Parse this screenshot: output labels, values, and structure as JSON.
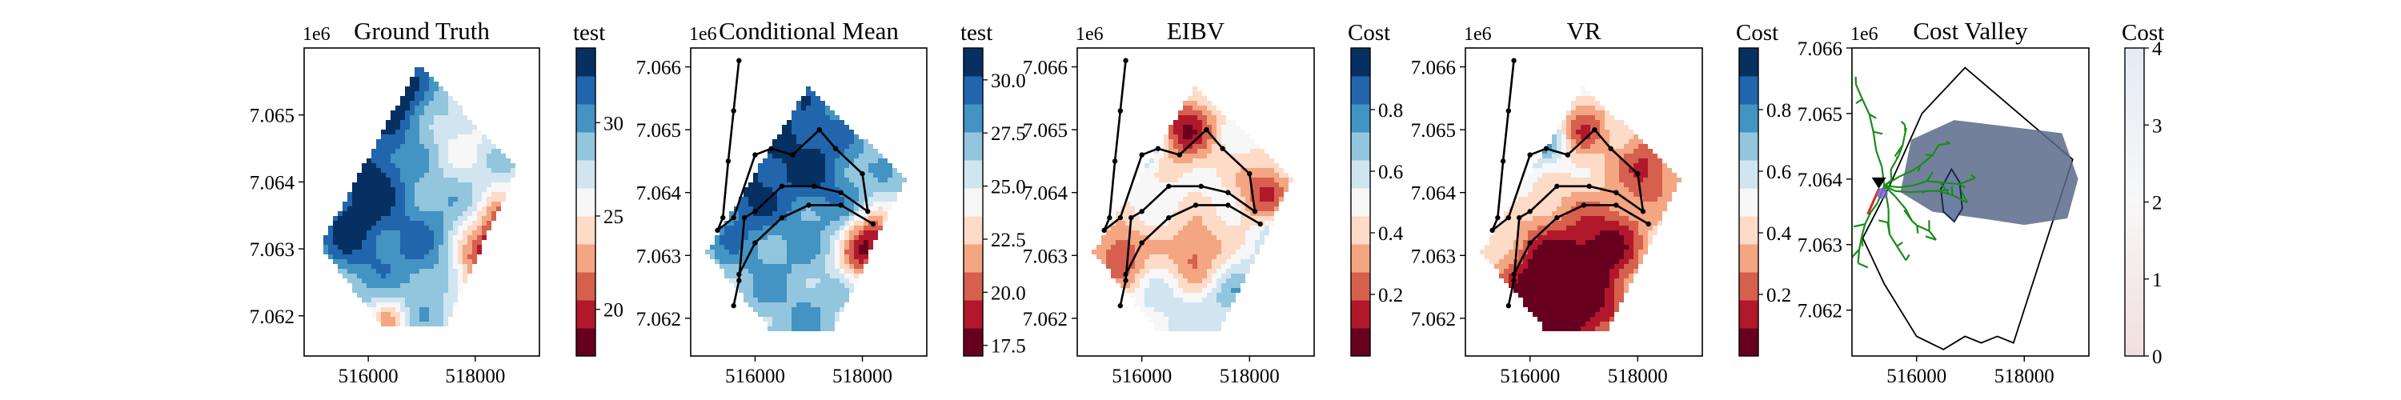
{
  "panels": [
    {
      "title": "Ground Truth",
      "cbar_label": "test",
      "multiplier": "1e6",
      "xticks": [
        "516000",
        "518000"
      ],
      "yticks": [
        "7.065",
        "7.064",
        "7.063",
        "7.062"
      ],
      "cbar_ticks": [
        "30",
        "25",
        "20"
      ]
    },
    {
      "title": "Conditional Mean",
      "cbar_label": "test",
      "multiplier": "1e6",
      "xticks": [
        "516000",
        "518000"
      ],
      "yticks": [
        "7.066",
        "7.065",
        "7.064",
        "7.063",
        "7.062"
      ],
      "cbar_ticks": [
        "30.0",
        "27.5",
        "25.0",
        "22.5",
        "20.0",
        "17.5"
      ]
    },
    {
      "title": "EIBV",
      "cbar_label": "Cost",
      "multiplier": "1e6",
      "xticks": [
        "516000",
        "518000"
      ],
      "yticks": [
        "7.066",
        "7.065",
        "7.064",
        "7.063",
        "7.062"
      ],
      "cbar_ticks": [
        "0.8",
        "0.6",
        "0.4",
        "0.2"
      ]
    },
    {
      "title": "VR",
      "cbar_label": "Cost",
      "multiplier": "1e6",
      "xticks": [
        "516000",
        "518000"
      ],
      "yticks": [
        "7.066",
        "7.065",
        "7.064",
        "7.063",
        "7.062"
      ],
      "cbar_ticks": [
        "0.8",
        "0.6",
        "0.4",
        "0.2"
      ]
    },
    {
      "title": "Cost Valley",
      "cbar_label": "Cost",
      "multiplier": "1e6",
      "xticks": [
        "516000",
        "518000"
      ],
      "yticks": [
        "7.066",
        "7.065",
        "7.064",
        "7.063",
        "7.062"
      ],
      "cbar_ticks": [
        "4",
        "3",
        "2",
        "1",
        "0"
      ]
    }
  ],
  "colors": {
    "diverging": [
      "#67001f",
      "#b2182b",
      "#d6604d",
      "#f4a582",
      "#fddbc7",
      "#f7f7f7",
      "#d1e5f0",
      "#92c5de",
      "#4393c3",
      "#2166ac",
      "#053061"
    ],
    "path": "#000000",
    "tree": "#1a8c1a",
    "cost_blob": "#5a6a8a",
    "cost_cbar_low": "#f3dede",
    "cost_cbar_high": "#e4ecf5"
  },
  "chart_data": [
    {
      "type": "heatmap",
      "title": "Ground Truth",
      "colorbar_label": "test",
      "x_range": [
        514800,
        519200
      ],
      "y_range": [
        7061400,
        7066000
      ],
      "color_range": [
        17.5,
        34
      ],
      "polygon": [
        [
          516950,
          7065750
        ],
        [
          518800,
          7064200
        ],
        [
          517450,
          7061850
        ],
        [
          516250,
          7061850
        ],
        [
          515100,
          7063050
        ]
      ],
      "fields": {
        "base": 28,
        "bumps": [
          [
            516500,
            7065300,
            6,
            450
          ],
          [
            516000,
            7064100,
            5,
            500
          ],
          [
            515600,
            7063200,
            4,
            500
          ],
          [
            518600,
            7063200,
            -9,
            380
          ],
          [
            518100,
            7062700,
            -7,
            420
          ],
          [
            516400,
            7061900,
            -5,
            250
          ],
          [
            517800,
            7064700,
            -2,
            400
          ],
          [
            517000,
            7063000,
            3,
            600
          ]
        ]
      }
    },
    {
      "type": "heatmap",
      "title": "Conditional Mean",
      "colorbar_label": "test",
      "x_range": [
        514800,
        519200
      ],
      "y_range": [
        7061400,
        7066300
      ],
      "color_range": [
        17.0,
        31.5
      ],
      "polygon": [
        [
          517000,
          7065700
        ],
        [
          518800,
          7064200
        ],
        [
          517450,
          7061800
        ],
        [
          516300,
          7061800
        ],
        [
          515100,
          7063050
        ]
      ],
      "fields": {
        "base": 26.5,
        "bumps": [
          [
            516700,
            7065000,
            3.5,
            700
          ],
          [
            515700,
            7064000,
            3.5,
            600
          ],
          [
            517300,
            7064200,
            2,
            500
          ],
          [
            518200,
            7063300,
            -7,
            300
          ],
          [
            517900,
            7062900,
            -5,
            300
          ],
          [
            516500,
            7062400,
            1,
            800
          ]
        ]
      },
      "path_main": [
        [
          515700,
          7066100
        ],
        [
          515600,
          7065300
        ],
        [
          515500,
          7064500
        ],
        [
          515400,
          7063600
        ],
        [
          515300,
          7063400
        ],
        [
          515600,
          7063600
        ],
        [
          516000,
          7064600
        ],
        [
          516300,
          7064700
        ],
        [
          516700,
          7064600
        ],
        [
          517200,
          7065000
        ],
        [
          517500,
          7064700
        ],
        [
          518000,
          7064300
        ],
        [
          518100,
          7063700
        ],
        [
          517600,
          7064000
        ],
        [
          517100,
          7064100
        ],
        [
          516500,
          7064100
        ],
        [
          516000,
          7063700
        ],
        [
          515800,
          7063600
        ],
        [
          515700,
          7062600
        ],
        [
          515600,
          7062200
        ]
      ],
      "path_arc": [
        [
          515700,
          7062700
        ],
        [
          516000,
          7063200
        ],
        [
          516500,
          7063600
        ],
        [
          517000,
          7063800
        ],
        [
          517600,
          7063800
        ],
        [
          518200,
          7063500
        ]
      ]
    },
    {
      "type": "heatmap",
      "title": "EIBV",
      "colorbar_label": "Cost",
      "x_range": [
        514800,
        519200
      ],
      "y_range": [
        7061400,
        7066300
      ],
      "color_range": [
        0,
        1
      ],
      "polygon": [
        [
          517000,
          7065700
        ],
        [
          518800,
          7064200
        ],
        [
          517450,
          7061800
        ],
        [
          516300,
          7061800
        ],
        [
          515100,
          7063050
        ]
      ],
      "fields": {
        "base": 0.5,
        "bumps": [
          [
            516800,
            7065000,
            -0.4,
            400
          ],
          [
            515600,
            7063000,
            -0.35,
            350
          ],
          [
            517000,
            7063000,
            -0.3,
            400
          ],
          [
            518300,
            7064000,
            -0.35,
            350
          ],
          [
            516500,
            7062200,
            0.1,
            500
          ],
          [
            518700,
            7063300,
            0.35,
            300
          ],
          [
            516000,
            7064800,
            0.3,
            300
          ],
          [
            517700,
            7062400,
            0.2,
            400
          ]
        ]
      },
      "path_main": [
        [
          515700,
          7066100
        ],
        [
          515600,
          7065300
        ],
        [
          515500,
          7064500
        ],
        [
          515400,
          7063600
        ],
        [
          515300,
          7063400
        ],
        [
          515600,
          7063600
        ],
        [
          516000,
          7064600
        ],
        [
          516300,
          7064700
        ],
        [
          516700,
          7064600
        ],
        [
          517200,
          7065000
        ],
        [
          517500,
          7064700
        ],
        [
          518000,
          7064300
        ],
        [
          518100,
          7063700
        ],
        [
          517600,
          7064000
        ],
        [
          517100,
          7064100
        ],
        [
          516500,
          7064100
        ],
        [
          516000,
          7063700
        ],
        [
          515800,
          7063600
        ],
        [
          515700,
          7062600
        ],
        [
          515600,
          7062200
        ]
      ],
      "path_arc": [
        [
          515700,
          7062700
        ],
        [
          516000,
          7063200
        ],
        [
          516500,
          7063600
        ],
        [
          517000,
          7063800
        ],
        [
          517600,
          7063800
        ],
        [
          518200,
          7063500
        ]
      ]
    },
    {
      "type": "heatmap",
      "title": "VR",
      "colorbar_label": "Cost",
      "x_range": [
        514800,
        519200
      ],
      "y_range": [
        7061400,
        7066300
      ],
      "color_range": [
        0,
        1
      ],
      "polygon": [
        [
          517000,
          7065700
        ],
        [
          518800,
          7064200
        ],
        [
          517450,
          7061800
        ],
        [
          516300,
          7061800
        ],
        [
          515100,
          7063050
        ]
      ],
      "fields": {
        "base": 0.45,
        "bumps": [
          [
            516800,
            7062600,
            -0.5,
            700
          ],
          [
            516300,
            7062200,
            -0.4,
            500
          ],
          [
            518200,
            7064400,
            -0.3,
            400
          ],
          [
            517000,
            7065000,
            -0.25,
            300
          ],
          [
            516200,
            7064800,
            0.35,
            300
          ],
          [
            515400,
            7064300,
            0.3,
            300
          ],
          [
            517600,
            7063300,
            -0.2,
            400
          ]
        ]
      },
      "path_main": [
        [
          515700,
          7066100
        ],
        [
          515600,
          7065300
        ],
        [
          515500,
          7064500
        ],
        [
          515400,
          7063600
        ],
        [
          515300,
          7063400
        ],
        [
          515600,
          7063600
        ],
        [
          516000,
          7064600
        ],
        [
          516300,
          7064700
        ],
        [
          516700,
          7064600
        ],
        [
          517200,
          7065000
        ],
        [
          517500,
          7064700
        ],
        [
          518000,
          7064300
        ],
        [
          518100,
          7063700
        ],
        [
          517600,
          7064000
        ],
        [
          517100,
          7064100
        ],
        [
          516500,
          7064100
        ],
        [
          516000,
          7063700
        ],
        [
          515800,
          7063600
        ],
        [
          515700,
          7062600
        ],
        [
          515600,
          7062200
        ]
      ],
      "path_arc": [
        [
          515700,
          7062700
        ],
        [
          516000,
          7063200
        ],
        [
          516500,
          7063600
        ],
        [
          517000,
          7063800
        ],
        [
          517600,
          7063800
        ],
        [
          518200,
          7063500
        ]
      ]
    },
    {
      "type": "heatmap",
      "title": "Cost Valley",
      "colorbar_label": "Cost",
      "x_range": [
        514800,
        519200
      ],
      "y_range": [
        7061300,
        7066000
      ],
      "color_range": [
        0,
        4
      ],
      "boundary": [
        [
          516900,
          7065700
        ],
        [
          518900,
          7064300
        ],
        [
          517800,
          7061500
        ],
        [
          517500,
          7061600
        ],
        [
          517200,
          7061500
        ],
        [
          516900,
          7061600
        ],
        [
          516500,
          7061400
        ],
        [
          516000,
          7061600
        ],
        [
          515400,
          7062400
        ],
        [
          515000,
          7063100
        ],
        [
          515500,
          7063900
        ],
        [
          516100,
          7065000
        ]
      ],
      "blob": [
        [
          515900,
          7064600
        ],
        [
          516700,
          7064900
        ],
        [
          518700,
          7064700
        ],
        [
          519000,
          7064000
        ],
        [
          518800,
          7063400
        ],
        [
          518000,
          7063300
        ],
        [
          517200,
          7063400
        ],
        [
          516300,
          7063500
        ],
        [
          515700,
          7063800
        ]
      ],
      "valley": [
        [
          516650,
          7064150
        ],
        [
          516800,
          7063950
        ],
        [
          516850,
          7063550
        ],
        [
          516700,
          7063350
        ],
        [
          516500,
          7063500
        ],
        [
          516450,
          7063850
        ]
      ],
      "start_marker": [
        515300,
        7063950
      ],
      "tree_root": [
        515400,
        7063900
      ]
    }
  ]
}
